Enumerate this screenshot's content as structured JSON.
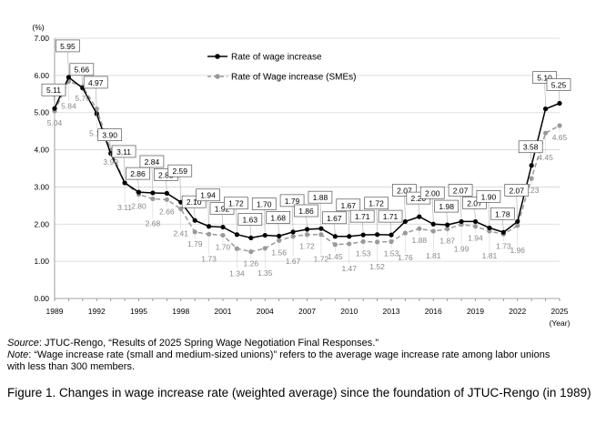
{
  "chart_data": {
    "type": "line",
    "ylabel": "(%)",
    "xlabel": "(Year)",
    "ylim": [
      0,
      7
    ],
    "yticks": [
      "0.00",
      "1.00",
      "2.00",
      "3.00",
      "4.00",
      "5.00",
      "6.00",
      "7.00"
    ],
    "xticks": [
      1989,
      1992,
      1995,
      1998,
      2001,
      2004,
      2007,
      2010,
      2013,
      2016,
      2019,
      2022,
      2025
    ],
    "x": [
      1989,
      1990,
      1991,
      1992,
      1993,
      1994,
      1995,
      1996,
      1997,
      1998,
      1999,
      2000,
      2001,
      2002,
      2003,
      2004,
      2005,
      2006,
      2007,
      2008,
      2009,
      2010,
      2011,
      2012,
      2013,
      2014,
      2015,
      2016,
      2017,
      2018,
      2019,
      2020,
      2021,
      2022,
      2023,
      2024,
      2025
    ],
    "series": [
      {
        "name": "Rate of wage increase",
        "color": "#000000",
        "values": [
          5.11,
          5.95,
          5.66,
          4.97,
          3.9,
          3.11,
          2.86,
          2.84,
          2.83,
          2.59,
          2.1,
          1.94,
          1.92,
          1.72,
          1.63,
          1.7,
          1.68,
          1.79,
          1.86,
          1.88,
          1.67,
          1.67,
          1.71,
          1.72,
          1.71,
          2.07,
          2.2,
          2.0,
          1.98,
          2.07,
          2.07,
          1.9,
          1.78,
          2.07,
          3.58,
          5.1,
          5.25
        ],
        "labels": [
          "5.11",
          "5.95",
          "5.66",
          "4.97",
          "3.90",
          "3.11",
          "2.86",
          "2.84",
          "2.83",
          "2.59",
          "2.10",
          "1.94",
          "1.92",
          "1.72",
          "1.63",
          "1.70",
          "1.68",
          "1.79",
          "1.86",
          "1.88",
          "1.67",
          "1.67",
          "1.71",
          "1.72",
          "1.71",
          "2.07",
          "2.20",
          "2.00",
          "1.98",
          "2.07",
          "2.07",
          "1.90",
          "1.78",
          "2.07",
          "3.58",
          "5.10",
          "5.25"
        ]
      },
      {
        "name": "Rate of Wage increase (SMEs)",
        "color": "#9a9a9a",
        "values": [
          5.04,
          5.84,
          5.7,
          5.1,
          3.99,
          3.11,
          2.8,
          2.68,
          2.66,
          2.41,
          1.79,
          1.73,
          1.7,
          1.34,
          1.26,
          1.35,
          1.56,
          1.67,
          1.72,
          1.72,
          1.45,
          1.47,
          1.53,
          1.52,
          1.53,
          1.76,
          1.88,
          1.81,
          1.87,
          1.99,
          1.94,
          1.81,
          1.73,
          1.96,
          3.23,
          4.45,
          4.65
        ],
        "labels": [
          "5.04",
          "5.84",
          "5.70",
          "5.10",
          "3.99",
          "3.11",
          "2.80",
          "2.68",
          "2.66",
          "2.41",
          "1.79",
          "1.73",
          "1.70",
          "1.34",
          "1.26",
          "1.35",
          "1.56",
          "1.67",
          "1.72",
          "1.72",
          "1.45",
          "1.47",
          "1.53",
          "1.52",
          "1.53",
          "1.76",
          "1.88",
          "1.81",
          "1.87",
          "1.99",
          "1.94",
          "1.81",
          "1.73",
          "1.96",
          "3.23",
          "4.45",
          "4.65"
        ]
      }
    ]
  },
  "source": {
    "prefix": "Source",
    "text": ": JTUC-Rengo, “Results of 2025 Spring Wage Negotiation Final Responses.”"
  },
  "note": {
    "prefix": "Note",
    "line1": ": “Wage increase rate (small and medium-sized unions)” refers to the average wage increase rate among labor unions",
    "line2": "with less than 300 members."
  },
  "caption": "Figure 1. Changes in wage increase rate (weighted average) since the foundation of JTUC-Rengo (in 1989)"
}
